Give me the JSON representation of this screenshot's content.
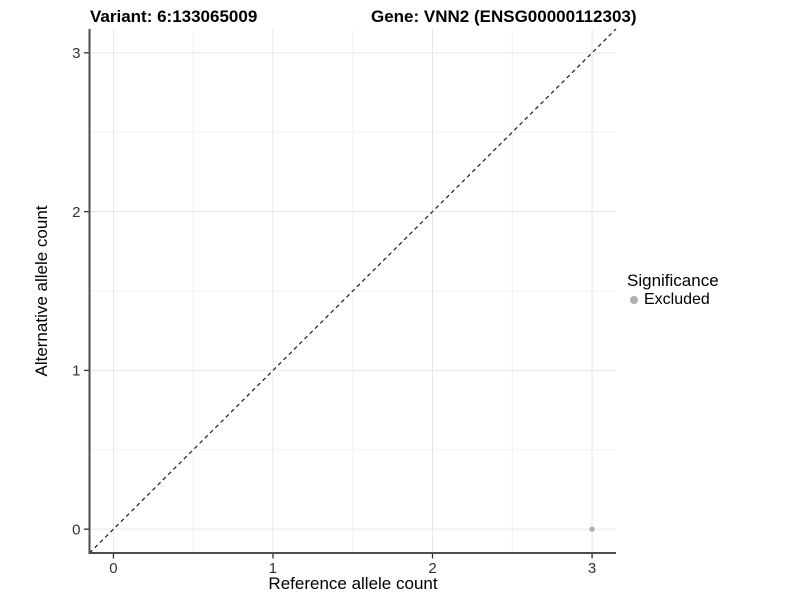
{
  "titles": {
    "variant": "Variant: 6:133065009",
    "gene": "Gene: VNN2 (ENSG00000112303)"
  },
  "chart_data": {
    "type": "scatter",
    "xlabel": "Reference allele count",
    "ylabel": "Alternative allele count",
    "xlim": [
      -0.15,
      3.15
    ],
    "ylim": [
      -0.15,
      3.15
    ],
    "xticks": [
      0,
      1,
      2,
      3
    ],
    "yticks": [
      0,
      1,
      2,
      3
    ],
    "x_minor_gridlines": [
      0.5,
      1.5,
      2.5
    ],
    "y_minor_gridlines": [
      0.5,
      1.5,
      2.5
    ],
    "grid": "major and minor gridlines, light gray on white panel",
    "legend_title": "Significance",
    "legend_position": "right",
    "series": [
      {
        "name": "Excluded",
        "color": "#b0b0b0",
        "marker": "circle",
        "points": [
          {
            "x": 3,
            "y": 0
          }
        ]
      }
    ],
    "reference_line": {
      "type": "identity (y = x)",
      "style": "dashed",
      "color": "#1a1a1a"
    }
  },
  "style": {
    "background": "#ffffff",
    "grid_major_color": "#e6e6e6",
    "grid_minor_color": "#f2f2f2",
    "axis_line_color": "#4d4d4d",
    "tick_color": "#333333",
    "tick_label_color": "#333333",
    "title_color": "#000000"
  }
}
